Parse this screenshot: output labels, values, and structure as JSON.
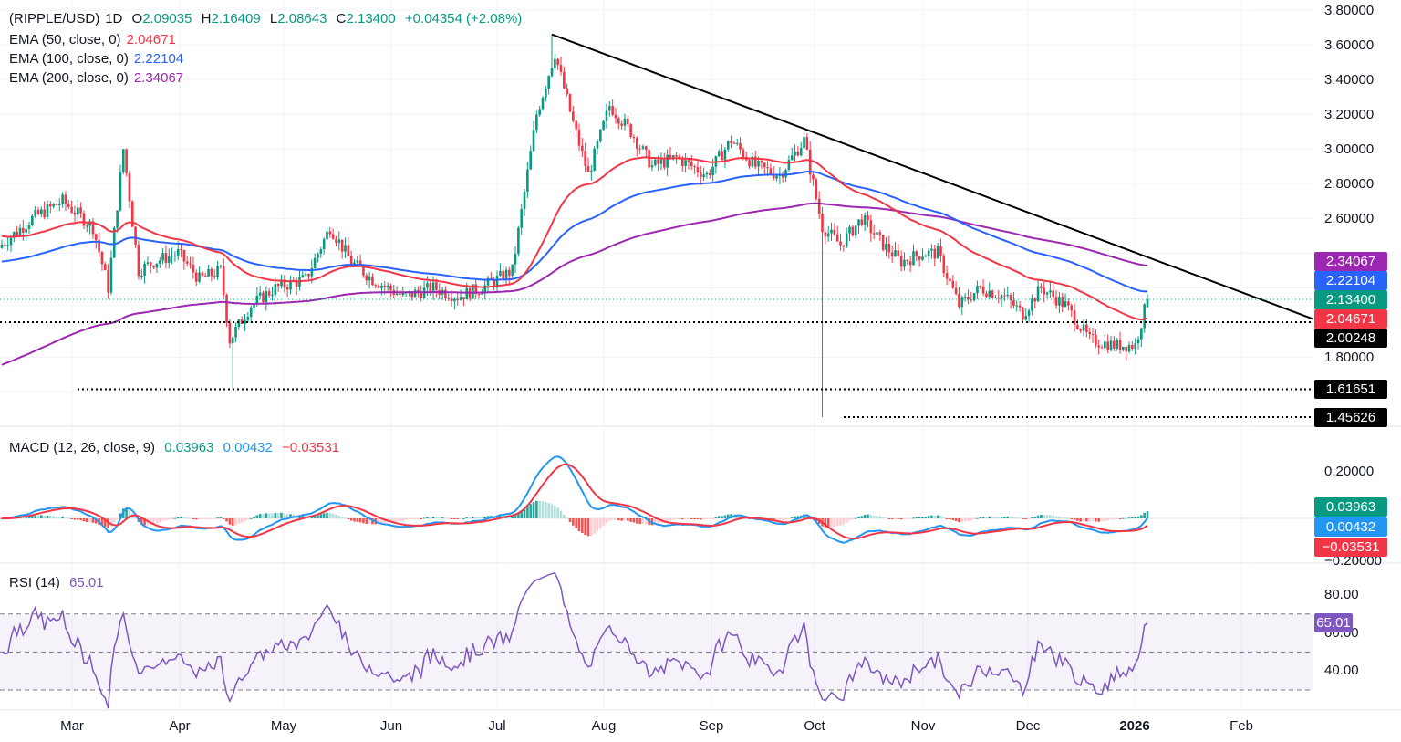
{
  "chart_data": [
    {
      "type": "candlestick",
      "symbol": "(RIPPLE/USD)",
      "interval": "1D",
      "ohlc": {
        "O": "2.09035",
        "H": "2.16409",
        "L": "2.08643",
        "C": "2.13400",
        "change": "+0.04354 (+2.08%)"
      },
      "ema": [
        {
          "name": "EMA (50, close, 0)",
          "value": "2.04671",
          "color": "#f23645"
        },
        {
          "name": "EMA (100, close, 0)",
          "value": "2.22104",
          "color": "#2962ff"
        },
        {
          "name": "EMA (200, close, 0)",
          "value": "2.34067",
          "color": "#9c27b0"
        }
      ],
      "price_ticks": [
        "3.80000",
        "3.60000",
        "3.40000",
        "3.20000",
        "3.00000",
        "2.80000",
        "2.60000",
        "1.80000"
      ],
      "price_levels": {
        "last": "2.13400",
        "support_1": "2.00248",
        "support_2": "1.61651",
        "support_3": "1.45626"
      },
      "trendline": {
        "from": [
          "2025-07-18",
          3.66
        ],
        "to": [
          "2026-02-25",
          2.02
        ]
      },
      "x_labels": [
        "Mar",
        "Apr",
        "May",
        "Jun",
        "Jul",
        "Aug",
        "Sep",
        "Oct",
        "Nov",
        "Dec",
        "2026",
        "Feb"
      ],
      "close_keypoints": [
        [
          0,
          2.45
        ],
        [
          10,
          2.6
        ],
        [
          20,
          2.7
        ],
        [
          30,
          2.55
        ],
        [
          35,
          2.2
        ],
        [
          40,
          3.0
        ],
        [
          45,
          2.3
        ],
        [
          50,
          2.35
        ],
        [
          58,
          2.4
        ],
        [
          65,
          2.25
        ],
        [
          72,
          2.3
        ],
        [
          75,
          1.9
        ],
        [
          82,
          2.1
        ],
        [
          90,
          2.2
        ],
        [
          100,
          2.25
        ],
        [
          108,
          2.55
        ],
        [
          115,
          2.35
        ],
        [
          122,
          2.25
        ],
        [
          132,
          2.15
        ],
        [
          142,
          2.2
        ],
        [
          150,
          2.15
        ],
        [
          158,
          2.2
        ],
        [
          168,
          2.3
        ],
        [
          176,
          3.2
        ],
        [
          182,
          3.55
        ],
        [
          188,
          3.15
        ],
        [
          193,
          2.85
        ],
        [
          200,
          3.25
        ],
        [
          207,
          3.1
        ],
        [
          214,
          2.9
        ],
        [
          222,
          2.95
        ],
        [
          232,
          2.85
        ],
        [
          240,
          3.05
        ],
        [
          248,
          2.9
        ],
        [
          256,
          2.85
        ],
        [
          264,
          3.05
        ],
        [
          270,
          2.55
        ],
        [
          276,
          2.45
        ],
        [
          283,
          2.6
        ],
        [
          290,
          2.45
        ],
        [
          296,
          2.35
        ],
        [
          303,
          2.4
        ],
        [
          308,
          2.4
        ],
        [
          315,
          2.1
        ],
        [
          322,
          2.2
        ],
        [
          330,
          2.15
        ],
        [
          336,
          2.05
        ],
        [
          342,
          2.2
        ],
        [
          350,
          2.1
        ],
        [
          358,
          1.9
        ],
        [
          366,
          1.87
        ],
        [
          373,
          1.87
        ],
        [
          377,
          2.134
        ]
      ]
    },
    {
      "type": "line",
      "title": "MACD (12, 26, close, 9)",
      "values": [
        "0.03963",
        "0.00432",
        "−0.03531"
      ],
      "colors": [
        "#089981",
        "#2196f3",
        "#f23645"
      ],
      "y_ticks": [
        "0.20000",
        "−0.20000"
      ]
    },
    {
      "type": "line",
      "title": "RSI (14)",
      "value": "65.01",
      "color": "#7e57c2",
      "y_ticks": [
        "80.00",
        "60.00",
        "40.00"
      ],
      "bands": [
        70,
        50,
        30
      ]
    }
  ]
}
